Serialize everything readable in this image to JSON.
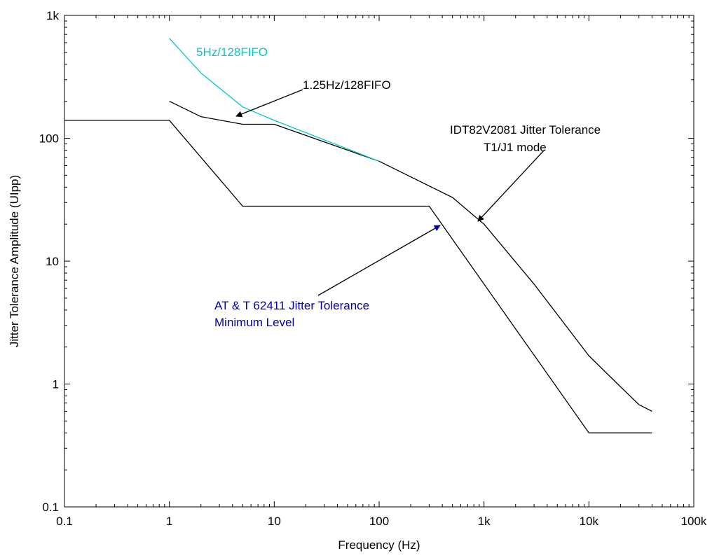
{
  "chart_data": {
    "type": "line",
    "x_scale": "log",
    "y_scale": "log",
    "xlim": [
      0.1,
      100000
    ],
    "ylim": [
      0.1,
      1000
    ],
    "xlabel": "Frequency (Hz)",
    "ylabel": "Jitter Tolerance Amplitude (UIpp)",
    "grid": false,
    "x_ticks": [
      {
        "value": 0.1,
        "label": "0.1"
      },
      {
        "value": 1,
        "label": "1"
      },
      {
        "value": 10,
        "label": "10"
      },
      {
        "value": 100,
        "label": "100"
      },
      {
        "value": 1000,
        "label": "1k"
      },
      {
        "value": 10000,
        "label": "10k"
      },
      {
        "value": 100000,
        "label": "100k"
      }
    ],
    "y_ticks": [
      {
        "value": 0.1,
        "label": "0.1"
      },
      {
        "value": 1,
        "label": "1"
      },
      {
        "value": 10,
        "label": "10"
      },
      {
        "value": 100,
        "label": "100"
      },
      {
        "value": 1000,
        "label": "1k"
      }
    ],
    "series": [
      {
        "color": "#000000",
        "points": [
          [
            0.1,
            140
          ],
          [
            1,
            140
          ],
          [
            5,
            28
          ],
          [
            300,
            28
          ],
          [
            10000,
            0.4
          ],
          [
            40000,
            0.4
          ]
        ]
      },
      {
        "color": "#000000",
        "points": [
          [
            1,
            200
          ],
          [
            2,
            150
          ],
          [
            5,
            130
          ],
          [
            10,
            130
          ],
          [
            100,
            65
          ],
          [
            500,
            33
          ],
          [
            1000,
            20
          ],
          [
            3000,
            6.5
          ],
          [
            10000,
            1.7
          ],
          [
            20000,
            0.95
          ],
          [
            30000,
            0.68
          ],
          [
            40000,
            0.6
          ]
        ]
      },
      {
        "color": "#00c8c8",
        "points": [
          [
            1,
            650
          ],
          [
            2,
            340
          ],
          [
            5,
            180
          ],
          [
            10,
            140
          ],
          [
            100,
            65
          ]
        ]
      }
    ],
    "annotations": [
      {
        "text": "5Hz/128FIFO",
        "color": "#00c8c8"
      },
      {
        "text": "1.25Hz/128FIFO",
        "color": "#000000"
      },
      {
        "text": "IDT82V2081 Jitter Tolerance",
        "color": "#000000"
      },
      {
        "text": "T1/J1 mode",
        "color": "#000000"
      },
      {
        "text": "AT & T 62411 Jitter Tolerance",
        "color": "#0000aa"
      },
      {
        "text": "Minimum Level",
        "color": "#0000aa"
      }
    ]
  }
}
